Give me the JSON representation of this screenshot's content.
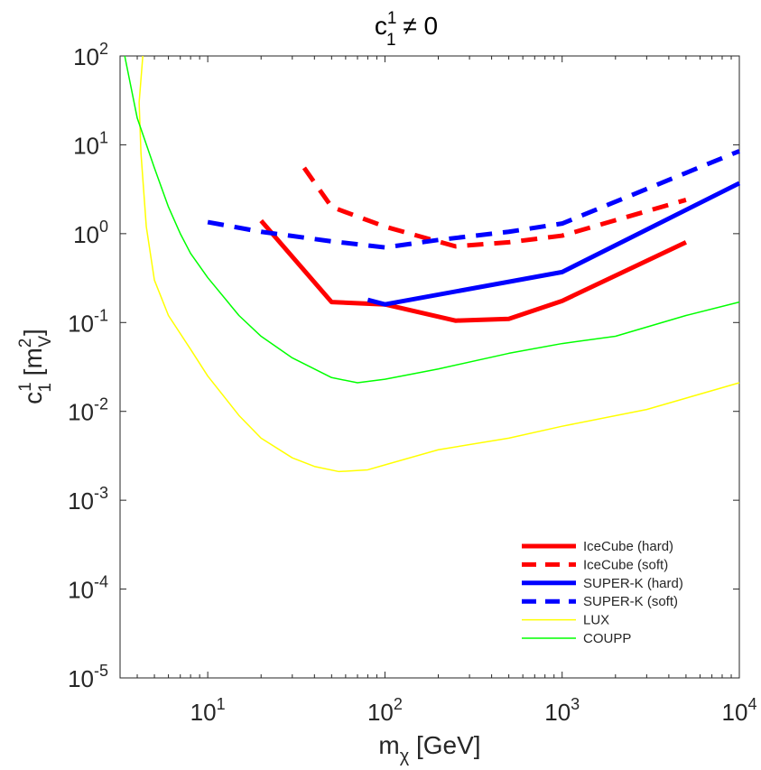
{
  "chart_data": {
    "type": "line",
    "title": "c",
    "title_sup": "1",
    "title_sub": "1",
    "title_rest": " ≠ 0",
    "xlabel": "m",
    "xlabel_sub": "χ",
    "xlabel_rest": " [GeV]",
    "ylabel": "c",
    "ylabel_sup": "1",
    "ylabel_sub": "1",
    "ylabel_unit": " [m",
    "ylabel_unit_sup": "2",
    "ylabel_unit_sub": "V",
    "ylabel_unit_close": "]",
    "xscale": "log",
    "yscale": "log",
    "xlim": [
      3.2,
      10000
    ],
    "ylim": [
      1e-05,
      100
    ],
    "x_ticks": [
      {
        "base": "10",
        "exp": "1",
        "value": 10
      },
      {
        "base": "10",
        "exp": "2",
        "value": 100
      },
      {
        "base": "10",
        "exp": "3",
        "value": 1000
      },
      {
        "base": "10",
        "exp": "4",
        "value": 10000
      }
    ],
    "y_ticks": [
      {
        "base": "10",
        "exp": "-5",
        "value": 1e-05
      },
      {
        "base": "10",
        "exp": "-4",
        "value": 0.0001
      },
      {
        "base": "10",
        "exp": "-3",
        "value": 0.001
      },
      {
        "base": "10",
        "exp": "-2",
        "value": 0.01
      },
      {
        "base": "10",
        "exp": "-1",
        "value": 0.1
      },
      {
        "base": "10",
        "exp": "0",
        "value": 1
      },
      {
        "base": "10",
        "exp": "1",
        "value": 10
      },
      {
        "base": "10",
        "exp": "2",
        "value": 100
      }
    ],
    "legend_position": "bottom-right",
    "series": [
      {
        "name": "IceCube (hard)",
        "color": "#ff0000",
        "style": "solid",
        "weight": "thick",
        "points": [
          [
            20,
            1.4
          ],
          [
            50,
            0.17
          ],
          [
            100,
            0.16
          ],
          [
            250,
            0.105
          ],
          [
            500,
            0.11
          ],
          [
            1000,
            0.175
          ],
          [
            5000,
            0.8
          ]
        ]
      },
      {
        "name": "IceCube (soft)",
        "color": "#ff0000",
        "style": "dashed",
        "weight": "thick",
        "points": [
          [
            35,
            5.5
          ],
          [
            50,
            2.0
          ],
          [
            100,
            1.2
          ],
          [
            250,
            0.72
          ],
          [
            500,
            0.8
          ],
          [
            1000,
            0.95
          ],
          [
            5000,
            2.4
          ]
        ]
      },
      {
        "name": "SUPER-K (hard)",
        "color": "#0000ff",
        "style": "solid",
        "weight": "thick",
        "points": [
          [
            80,
            0.18
          ],
          [
            100,
            0.16
          ],
          [
            1000,
            0.37
          ],
          [
            10000,
            3.7
          ]
        ]
      },
      {
        "name": "SUPER-K (soft)",
        "color": "#0000ff",
        "style": "dashed",
        "weight": "thick",
        "points": [
          [
            10,
            1.35
          ],
          [
            20,
            1.05
          ],
          [
            50,
            0.82
          ],
          [
            100,
            0.7
          ],
          [
            200,
            0.85
          ],
          [
            500,
            1.05
          ],
          [
            1000,
            1.3
          ],
          [
            10000,
            8.5
          ]
        ]
      },
      {
        "name": "LUX",
        "color": "#ffff00",
        "style": "solid",
        "weight": "thin",
        "points": [
          [
            4.3,
            100
          ],
          [
            4.1,
            30
          ],
          [
            4.2,
            8
          ],
          [
            4.5,
            1.2
          ],
          [
            5.0,
            0.3
          ],
          [
            6.0,
            0.12
          ],
          [
            8.0,
            0.05
          ],
          [
            10,
            0.025
          ],
          [
            15,
            0.009
          ],
          [
            20,
            0.005
          ],
          [
            30,
            0.003
          ],
          [
            40,
            0.0024
          ],
          [
            55,
            0.0021
          ],
          [
            80,
            0.0022
          ],
          [
            100,
            0.0025
          ],
          [
            200,
            0.0037
          ],
          [
            500,
            0.005
          ],
          [
            1000,
            0.0068
          ],
          [
            3000,
            0.0105
          ],
          [
            10000,
            0.021
          ]
        ]
      },
      {
        "name": "COUPP",
        "color": "#00ff00",
        "style": "solid",
        "weight": "thin",
        "points": [
          [
            3.4,
            100
          ],
          [
            4.0,
            20
          ],
          [
            5.0,
            5.5
          ],
          [
            6.0,
            2.0
          ],
          [
            7.0,
            1.0
          ],
          [
            8.0,
            0.6
          ],
          [
            10,
            0.32
          ],
          [
            15,
            0.12
          ],
          [
            20,
            0.07
          ],
          [
            30,
            0.04
          ],
          [
            50,
            0.024
          ],
          [
            70,
            0.021
          ],
          [
            100,
            0.023
          ],
          [
            200,
            0.03
          ],
          [
            500,
            0.045
          ],
          [
            1000,
            0.058
          ],
          [
            2000,
            0.07
          ],
          [
            5000,
            0.12
          ],
          [
            10000,
            0.17
          ]
        ]
      }
    ]
  }
}
